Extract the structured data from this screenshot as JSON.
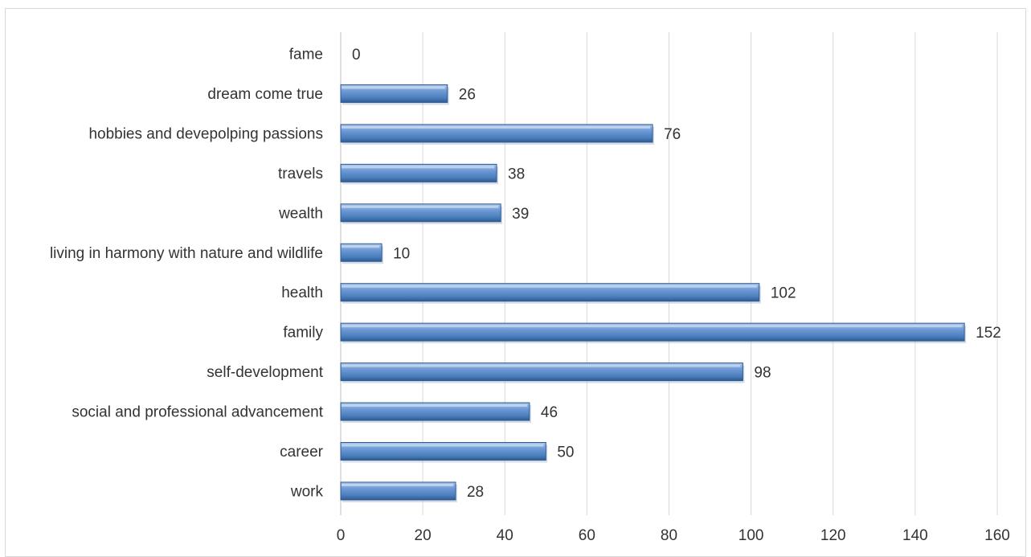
{
  "chart_data": {
    "type": "bar",
    "orientation": "horizontal",
    "title": "",
    "xlabel": "",
    "ylabel": "",
    "categories": [
      "fame",
      "dream come true",
      "hobbies and devepolping passions",
      "travels",
      "wealth",
      "living in harmony with nature and wildlife",
      "health",
      "family",
      "self-development",
      "social and professional advancement",
      "career",
      "work"
    ],
    "values": [
      0,
      26,
      76,
      38,
      39,
      10,
      102,
      152,
      98,
      46,
      50,
      28
    ],
    "xlim": [
      0,
      160
    ],
    "xticks": [
      0,
      20,
      40,
      60,
      80,
      100,
      120,
      140,
      160
    ],
    "xtick_labels": [
      "0",
      "20",
      "40",
      "60",
      "80",
      "100",
      "120",
      "140",
      "160"
    ],
    "value_labels": [
      "0",
      "26",
      "76",
      "38",
      "39",
      "10",
      "102",
      "152",
      "98",
      "46",
      "50",
      "28"
    ],
    "grid": "vertical",
    "legend": "none",
    "bar_color": "#4a7ebb"
  }
}
